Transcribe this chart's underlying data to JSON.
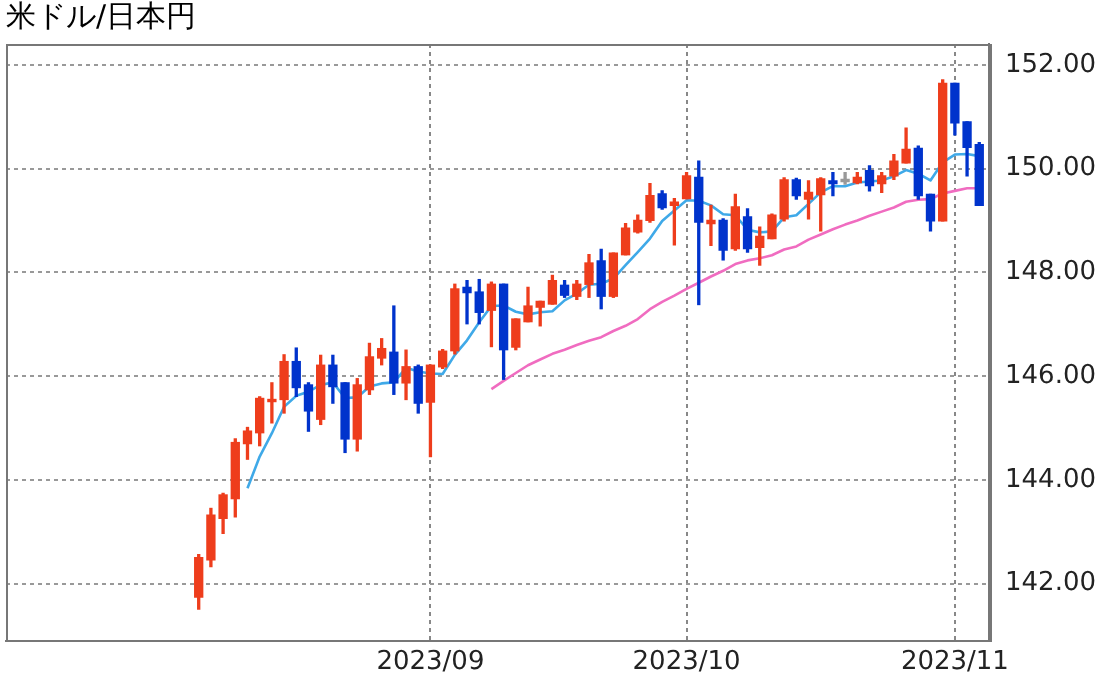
{
  "chart_data": {
    "type": "candlestick",
    "title": "米ドル/日本円",
    "categories": [
      null,
      null,
      null,
      null,
      null,
      null,
      null,
      null,
      null,
      null,
      null,
      null,
      null,
      null,
      null,
      null,
      null,
      null,
      null,
      "2023/09",
      null,
      null,
      null,
      null,
      null,
      null,
      null,
      null,
      null,
      null,
      null,
      null,
      null,
      null,
      null,
      null,
      null,
      null,
      null,
      null,
      "2023/10",
      null,
      null,
      null,
      null,
      null,
      null,
      null,
      null,
      null,
      null,
      null,
      null,
      null,
      null,
      null,
      null,
      null,
      null,
      null,
      null,
      null,
      "2023/11",
      null,
      null
    ],
    "ohlc": [
      [
        141.74,
        142.56,
        141.51,
        142.5
      ],
      [
        142.46,
        143.45,
        142.33,
        143.32
      ],
      [
        143.26,
        143.74,
        142.97,
        143.71
      ],
      [
        143.64,
        144.79,
        143.29,
        144.72
      ],
      [
        144.7,
        145.01,
        144.4,
        144.94
      ],
      [
        144.91,
        145.6,
        144.66,
        145.57
      ],
      [
        145.51,
        145.87,
        145.1,
        145.55
      ],
      [
        145.55,
        146.41,
        145.29,
        146.28
      ],
      [
        146.28,
        146.54,
        145.61,
        145.78
      ],
      [
        145.83,
        145.87,
        144.94,
        145.33
      ],
      [
        145.17,
        146.4,
        145.07,
        146.21
      ],
      [
        146.21,
        146.4,
        145.48,
        145.8
      ],
      [
        145.87,
        145.87,
        144.53,
        144.79
      ],
      [
        144.79,
        145.95,
        144.56,
        145.83
      ],
      [
        145.74,
        146.63,
        145.65,
        146.37
      ],
      [
        146.35,
        146.72,
        146.22,
        146.53
      ],
      [
        146.46,
        147.35,
        145.65,
        145.87
      ],
      [
        145.87,
        146.5,
        145.55,
        146.18
      ],
      [
        146.18,
        146.21,
        145.29,
        145.48
      ],
      [
        145.5,
        146.21,
        144.45,
        146.21
      ],
      [
        146.18,
        146.51,
        146.15,
        146.48
      ],
      [
        146.49,
        147.77,
        146.43,
        147.68
      ],
      [
        147.71,
        147.84,
        147.01,
        147.61
      ],
      [
        147.62,
        147.86,
        147.01,
        147.23
      ],
      [
        147.27,
        147.81,
        146.57,
        147.77
      ],
      [
        147.77,
        147.77,
        145.94,
        146.51
      ],
      [
        146.56,
        147.1,
        146.51,
        147.1
      ],
      [
        147.05,
        147.71,
        147.05,
        147.35
      ],
      [
        147.33,
        147.44,
        146.97,
        147.44
      ],
      [
        147.39,
        147.94,
        147.39,
        147.84
      ],
      [
        147.75,
        147.84,
        147.52,
        147.56
      ],
      [
        147.54,
        147.84,
        147.48,
        147.77
      ],
      [
        147.77,
        148.34,
        147.52,
        148.18
      ],
      [
        148.22,
        148.44,
        147.3,
        147.54
      ],
      [
        147.54,
        148.37,
        147.52,
        148.37
      ],
      [
        148.34,
        148.94,
        148.34,
        148.85
      ],
      [
        148.78,
        149.1,
        148.76,
        149.0
      ],
      [
        149.0,
        149.71,
        148.97,
        149.48
      ],
      [
        149.51,
        149.57,
        149.22,
        149.25
      ],
      [
        149.29,
        149.42,
        148.53,
        149.35
      ],
      [
        149.42,
        149.92,
        149.42,
        149.86
      ],
      [
        149.83,
        150.14,
        147.38,
        148.97
      ],
      [
        148.94,
        149.29,
        148.52,
        149.0
      ],
      [
        149.0,
        149.03,
        148.24,
        148.43
      ],
      [
        148.46,
        149.5,
        148.43,
        149.26
      ],
      [
        149.07,
        149.22,
        148.39,
        148.46
      ],
      [
        148.48,
        148.87,
        148.14,
        148.69
      ],
      [
        148.65,
        149.12,
        148.65,
        149.1
      ],
      [
        149.03,
        149.82,
        148.99,
        149.78
      ],
      [
        149.78,
        149.81,
        149.41,
        149.48
      ],
      [
        149.41,
        149.76,
        149.03,
        149.54
      ],
      [
        149.5,
        149.82,
        148.8,
        149.8
      ],
      [
        149.76,
        149.92,
        149.48,
        149.71
      ],
      [
        149.75,
        149.92,
        149.7,
        149.76
      ],
      [
        149.73,
        149.92,
        149.71,
        149.83
      ],
      [
        149.96,
        150.05,
        149.57,
        149.67
      ],
      [
        149.71,
        149.92,
        149.54,
        149.86
      ],
      [
        149.86,
        150.27,
        149.79,
        150.14
      ],
      [
        150.11,
        150.78,
        150.11,
        150.37
      ],
      [
        150.39,
        150.43,
        149.41,
        149.48
      ],
      [
        149.5,
        149.5,
        148.8,
        148.99
      ],
      [
        148.99,
        151.71,
        148.99,
        151.64
      ],
      [
        151.64,
        151.64,
        150.65,
        150.88
      ],
      [
        150.9,
        150.9,
        149.86,
        150.41
      ],
      [
        150.46,
        150.5,
        149.29,
        149.29
      ]
    ],
    "colors": [
      "#ee3d1c",
      "#ee3d1c",
      "#ee3d1c",
      "#ee3d1c",
      "#ee3d1c",
      "#ee3d1c",
      "#ee3d1c",
      "#ee3d1c",
      "#0033cc",
      "#0033cc",
      "#ee3d1c",
      "#0033cc",
      "#0033cc",
      "#ee3d1c",
      "#ee3d1c",
      "#ee3d1c",
      "#0033cc",
      "#ee3d1c",
      "#0033cc",
      "#ee3d1c",
      "#ee3d1c",
      "#ee3d1c",
      "#0033cc",
      "#0033cc",
      "#ee3d1c",
      "#0033cc",
      "#ee3d1c",
      "#ee3d1c",
      "#ee3d1c",
      "#ee3d1c",
      "#0033cc",
      "#ee3d1c",
      "#ee3d1c",
      "#0033cc",
      "#ee3d1c",
      "#ee3d1c",
      "#ee3d1c",
      "#ee3d1c",
      "#0033cc",
      "#ee3d1c",
      "#ee3d1c",
      "#0033cc",
      "#ee3d1c",
      "#0033cc",
      "#ee3d1c",
      "#0033cc",
      "#ee3d1c",
      "#ee3d1c",
      "#ee3d1c",
      "#0033cc",
      "#ee3d1c",
      "#ee3d1c",
      "#0033cc",
      "#999999",
      "#ee3d1c",
      "#0033cc",
      "#ee3d1c",
      "#ee3d1c",
      "#ee3d1c",
      "#0033cc",
      "#0033cc",
      "#ee3d1c",
      "#0033cc",
      "#0033cc",
      "#0033cc"
    ],
    "series": [
      {
        "type": "line",
        "color": "#3fa9e8",
        "values": [
          null,
          null,
          null,
          null,
          143.84,
          144.45,
          144.9,
          145.41,
          145.62,
          145.7,
          145.83,
          145.88,
          145.58,
          145.59,
          145.8,
          145.86,
          145.88,
          146.16,
          146.09,
          146.05,
          146.04,
          146.41,
          146.69,
          147.04,
          147.35,
          147.36,
          147.24,
          147.19,
          147.23,
          147.25,
          147.46,
          147.59,
          147.76,
          147.78,
          147.88,
          148.14,
          148.39,
          148.65,
          148.99,
          149.19,
          149.39,
          149.38,
          149.29,
          149.12,
          149.1,
          148.82,
          148.77,
          148.79,
          149.06,
          149.1,
          149.32,
          149.54,
          149.66,
          149.66,
          149.73,
          149.75,
          149.77,
          149.85,
          149.97,
          149.9,
          149.77,
          150.12,
          150.27,
          150.28,
          150.24
        ]
      },
      {
        "type": "line",
        "color": "#f06cc0",
        "values": [
          null,
          null,
          null,
          null,
          null,
          null,
          null,
          null,
          null,
          null,
          null,
          null,
          null,
          null,
          null,
          null,
          null,
          null,
          null,
          null,
          null,
          null,
          null,
          null,
          145.75,
          145.91,
          146.06,
          146.21,
          146.32,
          146.43,
          146.51,
          146.6,
          146.68,
          146.75,
          146.87,
          146.97,
          147.1,
          147.29,
          147.43,
          147.55,
          147.68,
          147.8,
          147.92,
          148.03,
          148.16,
          148.23,
          148.27,
          148.33,
          148.44,
          148.5,
          148.63,
          148.73,
          148.83,
          148.92,
          149.0,
          149.09,
          149.17,
          149.25,
          149.36,
          149.4,
          149.41,
          149.52,
          149.57,
          149.62,
          149.62
        ]
      }
    ],
    "ylim": [
      140.9,
      152.4
    ],
    "yticks": [
      {
        "value": 142,
        "label": "142.00"
      },
      {
        "value": 144,
        "label": "144.00"
      },
      {
        "value": 146,
        "label": "146.00"
      },
      {
        "value": 148,
        "label": "148.00"
      },
      {
        "value": 150,
        "label": "150.00"
      },
      {
        "value": 152,
        "label": "152.00"
      }
    ],
    "grid": true
  }
}
